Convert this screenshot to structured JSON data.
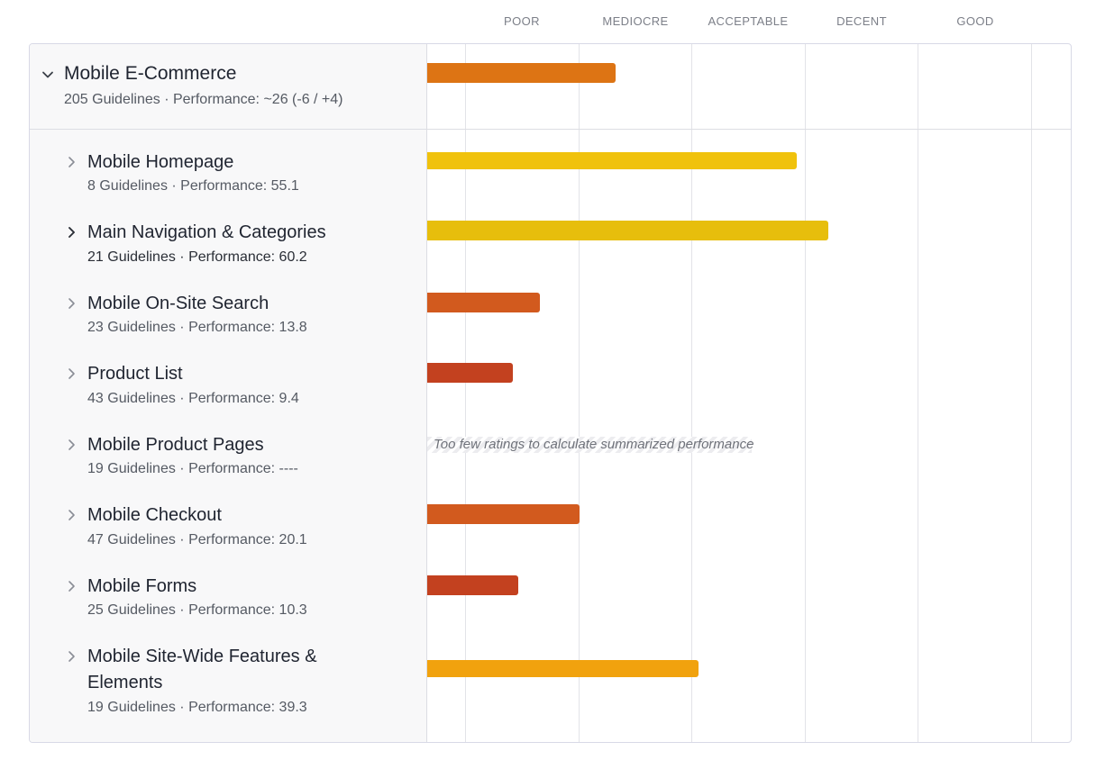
{
  "scale": {
    "labels": [
      "POOR",
      "MEDIOCRE",
      "ACCEPTABLE",
      "DECENT",
      "GOOD"
    ]
  },
  "colors": {
    "poor_red": "#c3411f",
    "poor_orange": "#d25a1e",
    "mediocre_orange": "#dd7414",
    "acceptable_orange": "#f1a20e",
    "acceptable_yellow": "#f0c20c",
    "decent_yellow": "#e7be0c"
  },
  "group": {
    "title": "Mobile E-Commerce",
    "subtitle": "205 Guidelines · Performance: ~26 (-6 / +4)",
    "performance": 26,
    "expanded": true,
    "icon": "chevron-down-icon"
  },
  "items": [
    {
      "title": "Mobile Homepage",
      "subtitle": "8 Guidelines · Performance: 55.1",
      "performance": 55.1
    },
    {
      "title": "Main Navigation & Categories",
      "subtitle": "21 Guidelines · Performance: 60.2",
      "performance": 60.2
    },
    {
      "title": "Mobile On-Site Search",
      "subtitle": "23 Guidelines · Performance: 13.8",
      "performance": 13.8
    },
    {
      "title": "Product List",
      "subtitle": "43 Guidelines · Performance: 9.4",
      "performance": 9.4
    },
    {
      "title": "Mobile Product Pages",
      "subtitle": "19 Guidelines · Performance: ----",
      "performance": null,
      "note": "Too few ratings to calculate summarized performance"
    },
    {
      "title": "Mobile Checkout",
      "subtitle": "47 Guidelines · Performance: 20.1",
      "performance": 20.1
    },
    {
      "title": "Mobile Forms",
      "subtitle": "25 Guidelines · Performance: 10.3",
      "performance": 10.3
    },
    {
      "title": "Mobile Site-Wide Features & Elements",
      "subtitle": "19 Guidelines · Performance: 39.3",
      "performance": 39.3
    }
  ]
}
